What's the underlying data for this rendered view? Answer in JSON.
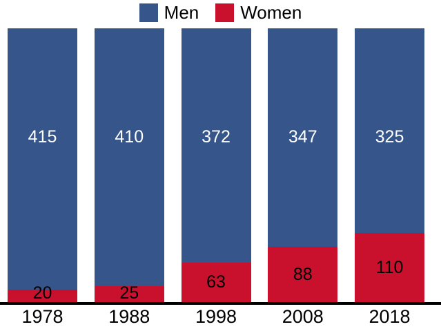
{
  "chart_data": {
    "type": "bar",
    "stacked": true,
    "orientation": "vertical",
    "categories": [
      "1978",
      "1988",
      "1998",
      "2008",
      "2018"
    ],
    "series": [
      {
        "name": "Men",
        "color": "#36568B",
        "values": [
          415,
          410,
          372,
          347,
          325
        ]
      },
      {
        "name": "Women",
        "color": "#C9112E",
        "values": [
          20,
          25,
          63,
          88,
          110
        ]
      }
    ],
    "title": "",
    "xlabel": "",
    "ylabel": "",
    "legend_position": "top-center",
    "grid": false,
    "axes_visible": "x-only",
    "value_labels_shown": true,
    "total_per_bar": 435
  },
  "colors": {
    "men_segment": "#36568B",
    "women_segment": "#C9112E",
    "men_value_text": "#FFFFFF",
    "women_value_text": "#000000",
    "axis_line": "#000000",
    "background": "#FFFFFF"
  }
}
